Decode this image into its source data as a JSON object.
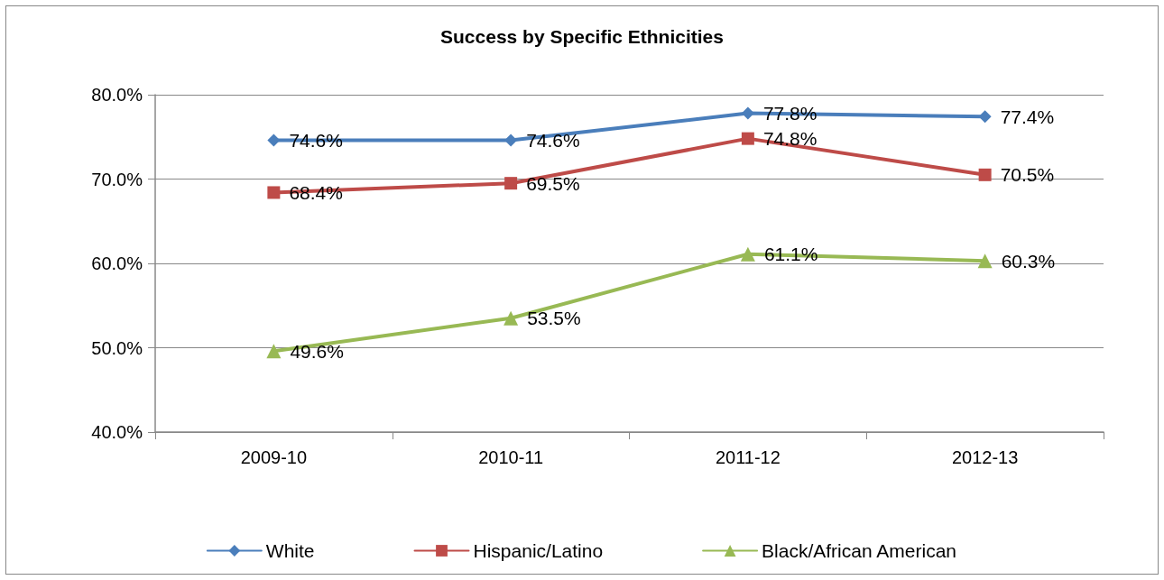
{
  "chart_data": {
    "type": "line",
    "title": "Success by Specific Ethnicities",
    "categories": [
      "2009-10",
      "2010-11",
      "2011-12",
      "2012-13"
    ],
    "series": [
      {
        "name": "White",
        "color": "#4a7ebb",
        "marker": "diamond",
        "values": [
          74.6,
          74.6,
          77.8,
          77.4
        ],
        "value_labels": [
          "74.6%",
          "74.6%",
          "77.8%",
          "77.4%"
        ]
      },
      {
        "name": "Hispanic/Latino",
        "color": "#be4b48",
        "marker": "square",
        "values": [
          68.4,
          69.5,
          74.8,
          70.5
        ],
        "value_labels": [
          "68.4%",
          "69.5%",
          "74.8%",
          "70.5%"
        ]
      },
      {
        "name": "Black/African American",
        "color": "#98b954",
        "marker": "triangle",
        "values": [
          49.6,
          53.5,
          61.1,
          60.3
        ],
        "value_labels": [
          "49.6%",
          "53.5%",
          "61.1%",
          "60.3%"
        ]
      }
    ],
    "ylim": [
      40,
      80
    ],
    "yticks": [
      {
        "value": 40,
        "label": "40.0%"
      },
      {
        "value": 50,
        "label": "50.0%"
      },
      {
        "value": 60,
        "label": "60.0%"
      },
      {
        "value": 70,
        "label": "70.0%"
      },
      {
        "value": 80,
        "label": "80.0%"
      }
    ],
    "grid": "y",
    "legend": "bottom",
    "line_style": "solid"
  }
}
